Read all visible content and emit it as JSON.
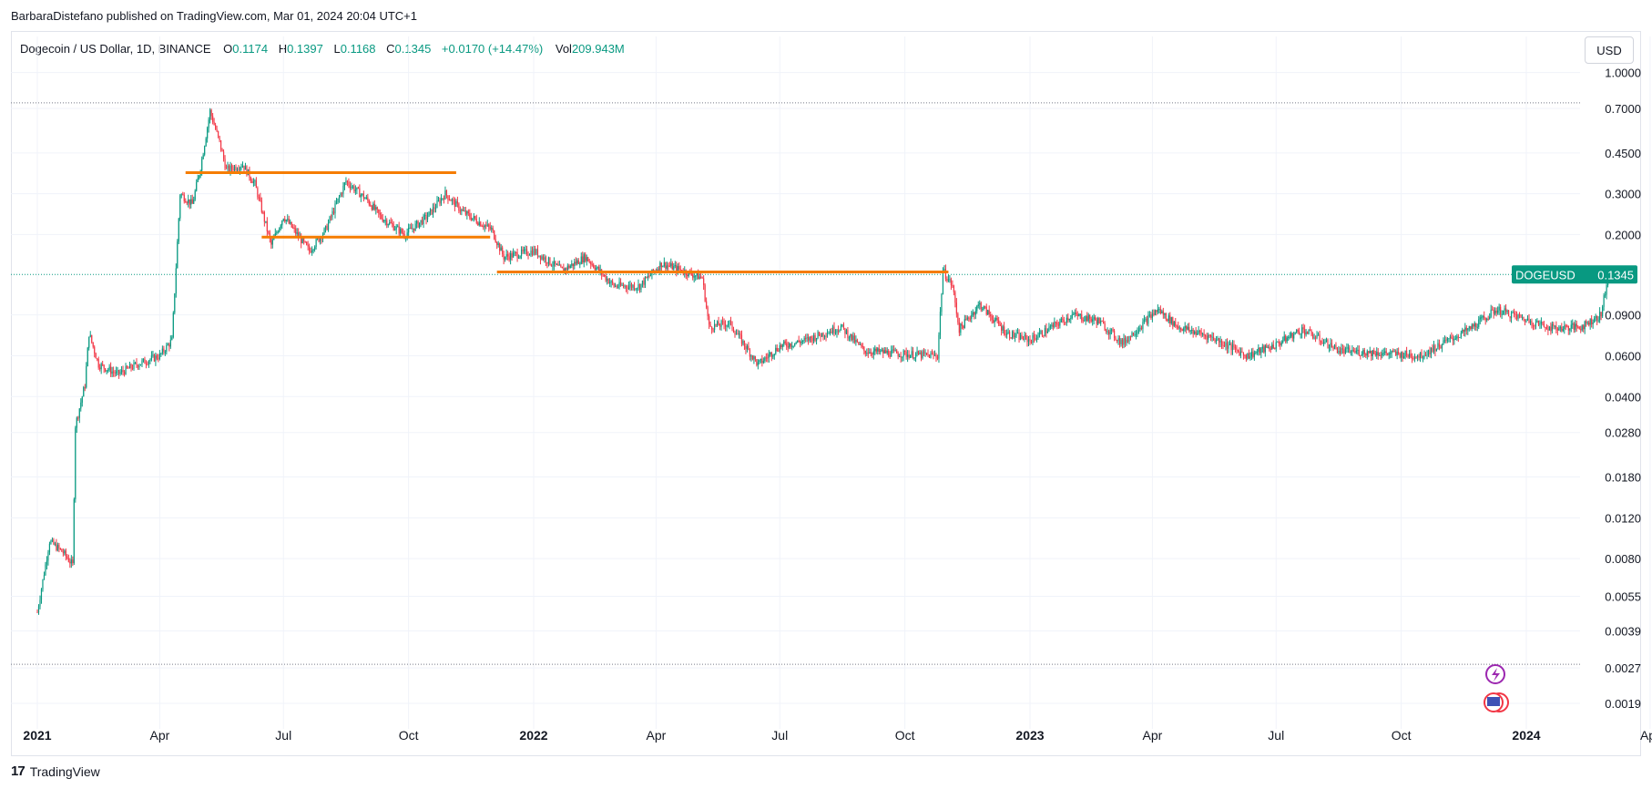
{
  "publish_line": "BarbaraDistefano published on TradingView.com, Mar 01, 2024 20:04 UTC+1",
  "legend": {
    "symbol": "Dogecoin / US Dollar, 1D, BINANCE",
    "open_label": "O",
    "open": "0.1174",
    "high_label": "H",
    "high": "0.1397",
    "low_label": "L",
    "low": "0.1168",
    "close_label": "C",
    "close": "0.1345",
    "change": "+0.0170 (+14.47%)",
    "vol_label": "Vol",
    "vol": "209.943M"
  },
  "currency_button": "USD",
  "footer_brand": "TradingView",
  "footer_logo": "17",
  "chart_data": {
    "type": "candlestick",
    "scale": "log",
    "y_ticks": [
      "1.0000",
      "0.7000",
      "0.4500",
      "0.3000",
      "0.2000",
      "0.1345",
      "0.0900",
      "0.0600",
      "0.0400",
      "0.0280",
      "0.0180",
      "0.0120",
      "0.0080",
      "0.0055",
      "0.0039",
      "0.0027",
      "0.0019"
    ],
    "y_tick_values": [
      1.0,
      0.7,
      0.45,
      0.3,
      0.2,
      0.09,
      0.06,
      0.04,
      0.028,
      0.018,
      0.012,
      0.008,
      0.0055,
      0.0039,
      0.0027,
      0.0019
    ],
    "x_ticks": [
      {
        "label": "2021",
        "date": "2021-01-01",
        "bold": true
      },
      {
        "label": "Apr",
        "date": "2021-04-01",
        "bold": false
      },
      {
        "label": "Jul",
        "date": "2021-07-01",
        "bold": false
      },
      {
        "label": "Oct",
        "date": "2021-10-01",
        "bold": false
      },
      {
        "label": "2022",
        "date": "2022-01-01",
        "bold": true
      },
      {
        "label": "Apr",
        "date": "2022-04-01",
        "bold": false
      },
      {
        "label": "Jul",
        "date": "2022-07-01",
        "bold": false
      },
      {
        "label": "Oct",
        "date": "2022-10-01",
        "bold": false
      },
      {
        "label": "2023",
        "date": "2023-01-01",
        "bold": true
      },
      {
        "label": "Apr",
        "date": "2023-04-01",
        "bold": false
      },
      {
        "label": "Jul",
        "date": "2023-07-01",
        "bold": false
      },
      {
        "label": "Oct",
        "date": "2023-10-01",
        "bold": false
      },
      {
        "label": "2024",
        "date": "2024-01-01",
        "bold": true
      },
      {
        "label": "Apr",
        "date": "2024-04-01",
        "bold": false
      }
    ],
    "price_label": {
      "text": "DOGEUSD",
      "value": "0.1345",
      "price": 0.1345,
      "color": "#089981"
    },
    "dotted_levels": [
      0.74,
      0.0028
    ],
    "support_resistance_lines": [
      {
        "from": "2021-04-20",
        "to": "2021-11-05",
        "price": 0.37,
        "color": "#f57c00"
      },
      {
        "from": "2021-06-15",
        "to": "2021-11-30",
        "price": 0.195,
        "color": "#f57c00"
      },
      {
        "from": "2021-12-05",
        "to": "2022-11-02",
        "price": 0.138,
        "color": "#f57c00"
      }
    ],
    "up_color": "#089981",
    "down_color": "#f23645",
    "price_path": [
      [
        "2021-01-01",
        0.0047
      ],
      [
        "2021-01-10",
        0.0095
      ],
      [
        "2021-01-20",
        0.0085
      ],
      [
        "2021-01-27",
        0.0075
      ],
      [
        "2021-01-29",
        0.03
      ],
      [
        "2021-02-05",
        0.045
      ],
      [
        "2021-02-08",
        0.075
      ],
      [
        "2021-02-15",
        0.055
      ],
      [
        "2021-03-01",
        0.05
      ],
      [
        "2021-03-15",
        0.055
      ],
      [
        "2021-04-01",
        0.06
      ],
      [
        "2021-04-10",
        0.07
      ],
      [
        "2021-04-16",
        0.3
      ],
      [
        "2021-04-25",
        0.27
      ],
      [
        "2021-05-01",
        0.39
      ],
      [
        "2021-05-08",
        0.68
      ],
      [
        "2021-05-15",
        0.5
      ],
      [
        "2021-05-20",
        0.38
      ],
      [
        "2021-06-01",
        0.4
      ],
      [
        "2021-06-10",
        0.33
      ],
      [
        "2021-06-22",
        0.18
      ],
      [
        "2021-07-01",
        0.24
      ],
      [
        "2021-07-20",
        0.17
      ],
      [
        "2021-08-01",
        0.21
      ],
      [
        "2021-08-16",
        0.34
      ],
      [
        "2021-09-01",
        0.28
      ],
      [
        "2021-09-10",
        0.24
      ],
      [
        "2021-09-28",
        0.2
      ],
      [
        "2021-10-15",
        0.24
      ],
      [
        "2021-10-28",
        0.3
      ],
      [
        "2021-11-10",
        0.25
      ],
      [
        "2021-12-01",
        0.21
      ],
      [
        "2021-12-10",
        0.16
      ],
      [
        "2022-01-01",
        0.17
      ],
      [
        "2022-01-22",
        0.14
      ],
      [
        "2022-02-08",
        0.16
      ],
      [
        "2022-03-01",
        0.12
      ],
      [
        "2022-03-20",
        0.12
      ],
      [
        "2022-04-05",
        0.15
      ],
      [
        "2022-04-20",
        0.14
      ],
      [
        "2022-05-05",
        0.13
      ],
      [
        "2022-05-10",
        0.08
      ],
      [
        "2022-05-25",
        0.083
      ],
      [
        "2022-06-15",
        0.055
      ],
      [
        "2022-07-01",
        0.066
      ],
      [
        "2022-07-20",
        0.07
      ],
      [
        "2022-08-15",
        0.08
      ],
      [
        "2022-09-01",
        0.063
      ],
      [
        "2022-10-01",
        0.061
      ],
      [
        "2022-10-25",
        0.06
      ],
      [
        "2022-10-29",
        0.14
      ],
      [
        "2022-11-05",
        0.12
      ],
      [
        "2022-11-10",
        0.078
      ],
      [
        "2022-11-25",
        0.1
      ],
      [
        "2022-12-15",
        0.075
      ],
      [
        "2023-01-01",
        0.07
      ],
      [
        "2023-02-01",
        0.09
      ],
      [
        "2023-02-20",
        0.085
      ],
      [
        "2023-03-10",
        0.068
      ],
      [
        "2023-04-05",
        0.095
      ],
      [
        "2023-04-20",
        0.08
      ],
      [
        "2023-05-15",
        0.072
      ],
      [
        "2023-06-10",
        0.06
      ],
      [
        "2023-07-01",
        0.067
      ],
      [
        "2023-07-20",
        0.078
      ],
      [
        "2023-08-17",
        0.063
      ],
      [
        "2023-09-10",
        0.062
      ],
      [
        "2023-10-15",
        0.06
      ],
      [
        "2023-11-01",
        0.068
      ],
      [
        "2023-11-20",
        0.078
      ],
      [
        "2023-12-10",
        0.095
      ],
      [
        "2024-01-03",
        0.085
      ],
      [
        "2024-01-20",
        0.079
      ],
      [
        "2024-02-10",
        0.08
      ],
      [
        "2024-02-25",
        0.09
      ],
      [
        "2024-03-01",
        0.1345
      ]
    ]
  }
}
